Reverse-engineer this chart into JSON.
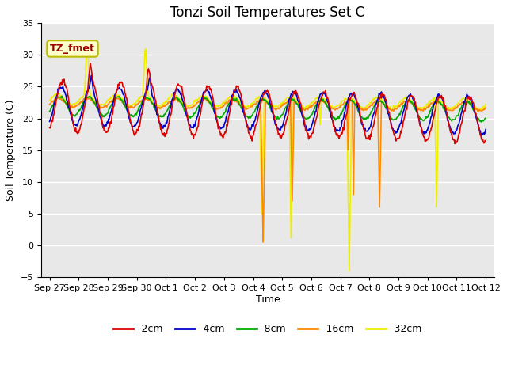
{
  "title": "Tonzi Soil Temperatures Set C",
  "xlabel": "Time",
  "ylabel": "Soil Temperature (C)",
  "ylim": [
    -5,
    35
  ],
  "yticks": [
    -5,
    0,
    5,
    10,
    15,
    20,
    25,
    30,
    35
  ],
  "x_labels": [
    "Sep 27",
    "Sep 28",
    "Sep 29",
    "Sep 30",
    "Oct 1",
    "Oct 2",
    "Oct 3",
    "Oct 4",
    "Oct 5",
    "Oct 6",
    "Oct 7",
    "Oct 8",
    "Oct 9",
    "Oct 10",
    "Oct 11",
    "Oct 12"
  ],
  "annotation_text": "TZ_fmet",
  "annotation_bg": "#ffffcc",
  "annotation_border": "#bbbb00",
  "annotation_fg": "#990000",
  "series_colors": [
    "#dd0000",
    "#0000cc",
    "#00aa00",
    "#ff8800",
    "#eeee00"
  ],
  "series_labels": [
    "-2cm",
    "-4cm",
    "-8cm",
    "-16cm",
    "-32cm"
  ],
  "plot_bg": "#e8e8e8",
  "grid_color": "#ffffff",
  "title_fontsize": 12,
  "label_fontsize": 9,
  "tick_fontsize": 8
}
